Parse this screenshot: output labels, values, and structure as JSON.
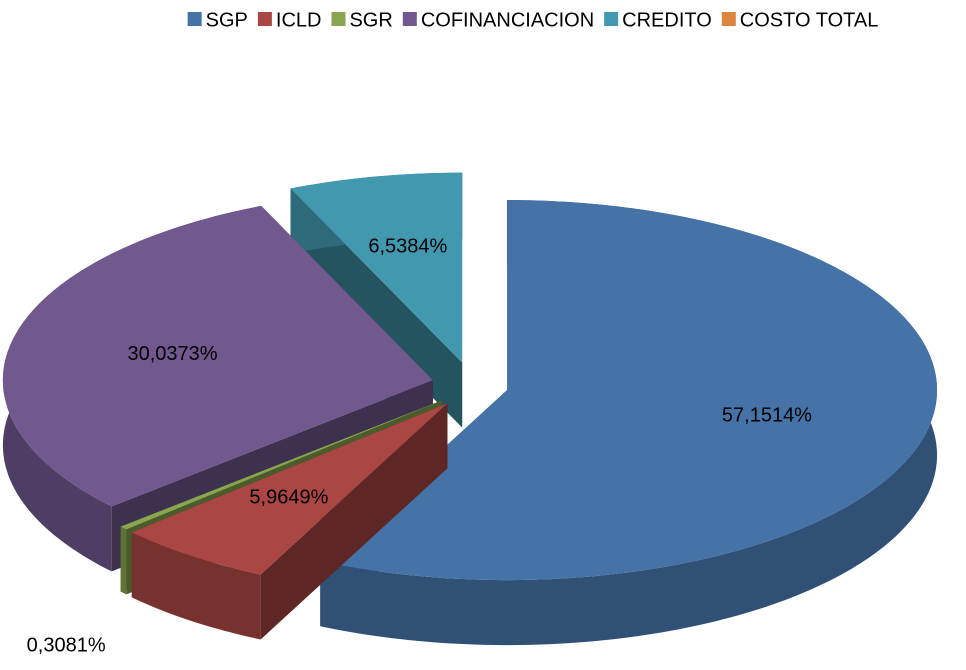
{
  "chart_data": {
    "type": "pie3d",
    "categories": [
      "SGP",
      "ICLD",
      "SGR",
      "COFINANCIACION",
      "CREDITO",
      "COSTO TOTAL"
    ],
    "values": [
      57.1514,
      5.9649,
      0.3081,
      30.0373,
      6.5384,
      0
    ],
    "value_labels": [
      "57,1514%",
      "5,9649%",
      "0,3081%",
      "30,0373%",
      "6,5384%",
      null
    ],
    "colors": [
      "#4572a7",
      "#aa4643",
      "#89a54e",
      "#71588f",
      "#4198af",
      "#db843d"
    ],
    "legend": "top"
  }
}
